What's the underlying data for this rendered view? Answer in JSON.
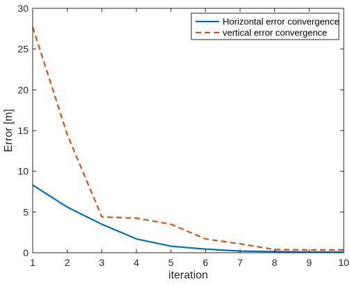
{
  "chart_data": {
    "type": "line",
    "xlabel": "iteration",
    "ylabel": "Error [m]",
    "xlim": [
      1,
      10
    ],
    "ylim": [
      0,
      30
    ],
    "x_ticks": [
      1,
      2,
      3,
      4,
      5,
      6,
      7,
      8,
      9,
      10
    ],
    "y_ticks": [
      0,
      5,
      10,
      15,
      20,
      25,
      30
    ],
    "grid": false,
    "legend_position": "top-right",
    "x": [
      1,
      2,
      3,
      4,
      5,
      6,
      7,
      8,
      9,
      10
    ],
    "series": [
      {
        "name": "Horizontal error convergence",
        "color": "#0072BD",
        "line_style": "solid",
        "values": [
          8.3,
          5.6,
          3.5,
          1.7,
          0.8,
          0.45,
          0.2,
          0.15,
          0.1,
          0.1
        ]
      },
      {
        "name": "vertical error convergence",
        "color": "#D95319",
        "line_style": "dashed",
        "values": [
          27.7,
          14.5,
          4.4,
          4.25,
          3.5,
          1.7,
          1.1,
          0.4,
          0.35,
          0.35
        ]
      }
    ]
  }
}
